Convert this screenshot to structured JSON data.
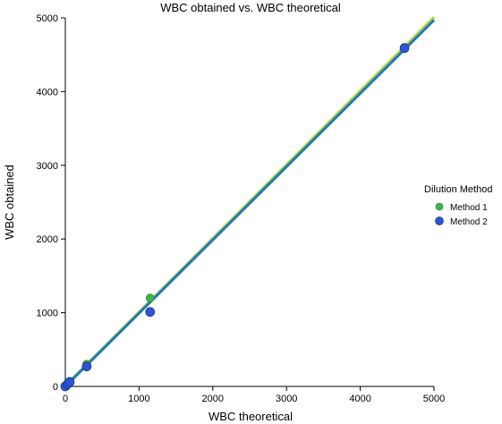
{
  "chart_data": {
    "type": "scatter",
    "title": "WBC obtained vs. WBC theoretical",
    "xlabel": "WBC theoretical",
    "ylabel": "WBC obtained",
    "xlim": [
      0,
      5000
    ],
    "ylim": [
      0,
      5000
    ],
    "xticks": [
      "0",
      "1000",
      "2000",
      "3000",
      "4000",
      "5000"
    ],
    "yticks": [
      "0",
      "1000",
      "2000",
      "3000",
      "4000",
      "5000"
    ],
    "grid": false,
    "legend": {
      "title": "Dilution Method",
      "placement": "right"
    },
    "series": [
      {
        "name": "Method 1",
        "color": "#3cb54a",
        "x": [
          0,
          30,
          60,
          290,
          1150,
          4600
        ],
        "y": [
          10,
          40,
          70,
          300,
          1200,
          4600
        ],
        "fit": {
          "x": [
            0,
            5000
          ],
          "y": [
            10,
            5010
          ],
          "color": "#b5d33c"
        }
      },
      {
        "name": "Method 2",
        "color": "#2c55d6",
        "x": [
          0,
          30,
          60,
          290,
          1150,
          4600
        ],
        "y": [
          0,
          30,
          60,
          270,
          1010,
          4590
        ],
        "fit": {
          "x": [
            0,
            5000
          ],
          "y": [
            0,
            4970
          ],
          "color": "#1f7ab8"
        }
      }
    ]
  }
}
